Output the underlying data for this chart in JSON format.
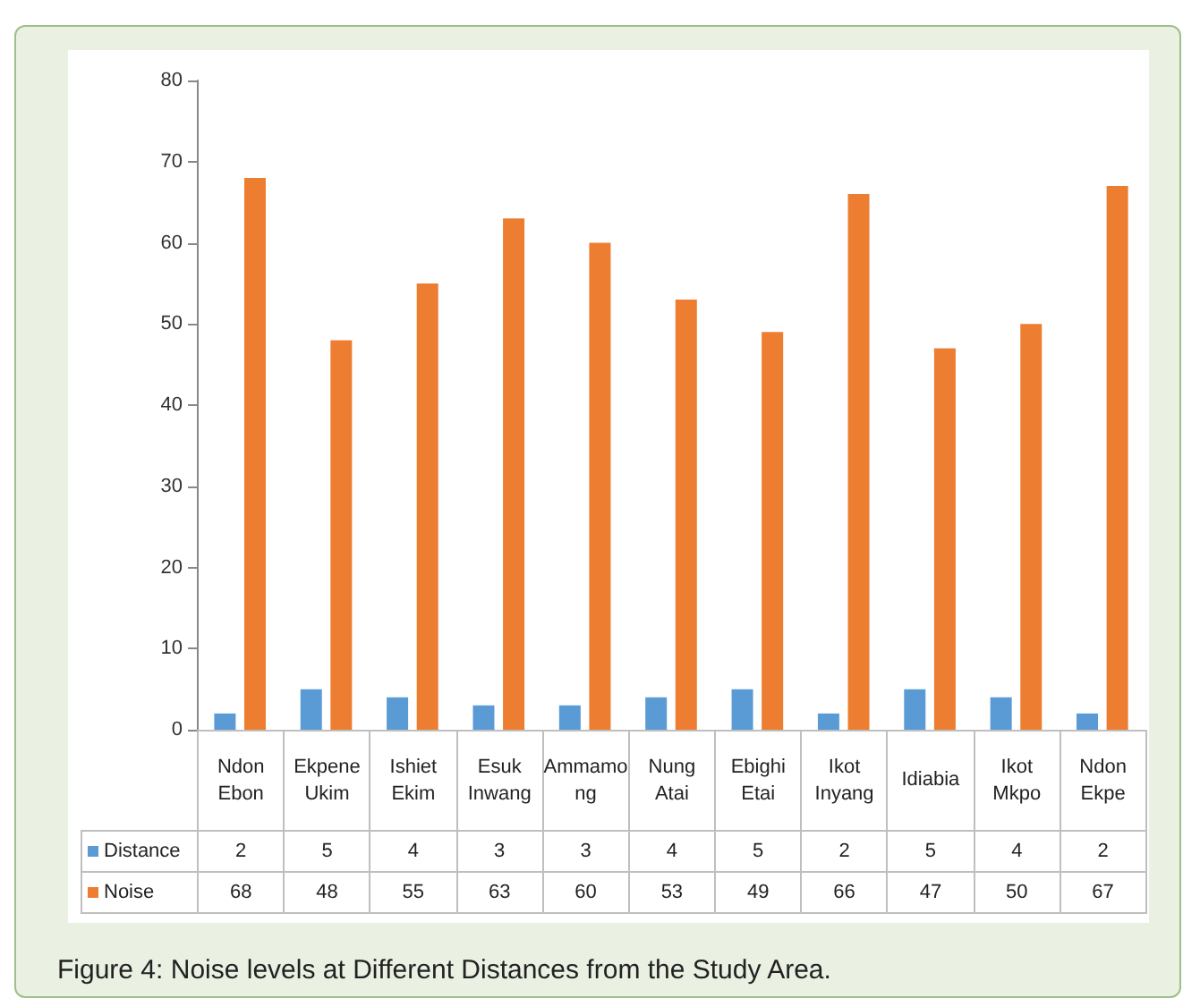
{
  "chart_data": {
    "type": "bar",
    "categories": [
      "Ndon Ebon",
      "Ekpene Ukim",
      "Ishiet Ekim",
      "Esuk Inwang",
      "Ammamong",
      "Nung Atai",
      "Ebighi Etai",
      "Ikot Inyang",
      "Idiabia",
      "Ikot Mkpo",
      "Ndon Ekpe"
    ],
    "series": [
      {
        "name": "Distance",
        "color": "#5b9bd5",
        "values": [
          2,
          5,
          4,
          3,
          3,
          4,
          5,
          2,
          5,
          4,
          2
        ]
      },
      {
        "name": "Noise",
        "color": "#ed7d31",
        "values": [
          68,
          48,
          55,
          63,
          60,
          53,
          49,
          66,
          47,
          50,
          67
        ]
      }
    ],
    "ylim": [
      0,
      80
    ],
    "yticks": [
      0,
      10,
      20,
      30,
      40,
      50,
      60,
      70,
      80
    ],
    "data_labels": true,
    "legend": "bottom left",
    "annotations": [
      "Figure 4: Noise levels at Different Distances from the Study Area."
    ]
  }
}
